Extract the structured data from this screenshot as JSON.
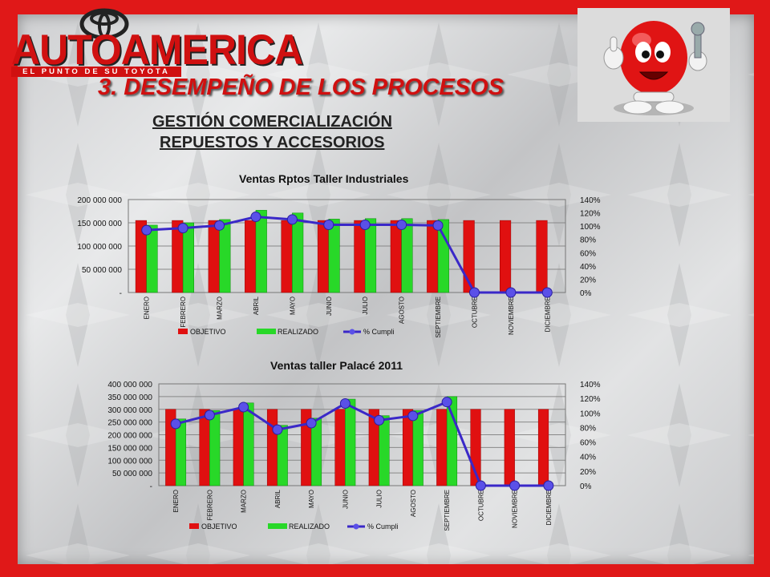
{
  "slide": {
    "logo": {
      "name": "AUTOAMERICA",
      "tagline": "EL PUNTO DE SU TOYOTA"
    },
    "title": "3. DESEMPEÑO DE LOS PROCESOS",
    "subtitle_line1": "GESTIÓN COMERCIALIZACIÓN",
    "subtitle_line2": "REPUESTOS Y ACCESORIOS",
    "mascot_icon": "red-mascot-thumbs-up-wrench-icon"
  },
  "colors": {
    "objetivo": "#e01010",
    "realizado": "#28d828",
    "cumpli": "#3a28c8",
    "frame": "#e01818"
  },
  "chart_data": [
    {
      "type": "bar",
      "title": "Ventas Rptos Taller Industriales",
      "categories": [
        "ENERO",
        "FEBRERO",
        "MARZO",
        "ABRIL",
        "MAYO",
        "JUNIO",
        "JULIO",
        "AGOSTO",
        "SEPTIEMBRE",
        "OCTUBRE",
        "NOVIEMBRE",
        "DICIEMBRE"
      ],
      "series": [
        {
          "name": "OBJETIVO",
          "kind": "bar",
          "axis": "left",
          "values": [
            155000000,
            155000000,
            155000000,
            155000000,
            155000000,
            155000000,
            155000000,
            155000000,
            155000000,
            155000000,
            155000000,
            155000000
          ]
        },
        {
          "name": "REALIZADO",
          "kind": "bar",
          "axis": "left",
          "values": [
            145000000,
            150000000,
            157000000,
            177000000,
            171000000,
            158000000,
            159000000,
            159000000,
            157000000,
            0,
            0,
            0
          ]
        },
        {
          "name": "% Cumpli",
          "kind": "line",
          "axis": "right",
          "values": [
            0.94,
            0.97,
            1.01,
            1.14,
            1.1,
            1.02,
            1.02,
            1.02,
            1.01,
            0,
            0,
            0
          ]
        }
      ],
      "ylim": [
        0,
        200000000
      ],
      "y_ticks": [
        "-",
        "50 000 000",
        "100 000 000",
        "150 000 000",
        "200 000 000"
      ],
      "y2lim": [
        0,
        1.4
      ],
      "y2_ticks": [
        "0%",
        "20%",
        "40%",
        "60%",
        "80%",
        "100%",
        "120%",
        "140%"
      ],
      "legend": "bottom",
      "grid": true
    },
    {
      "type": "bar",
      "title": "Ventas taller Palacé 2011",
      "categories": [
        "ENERO",
        "FEBRERO",
        "MARZO",
        "ABRIL",
        "MAYO",
        "JUNIO",
        "JULIO",
        "AGOSTO",
        "SEPTIEMBRE",
        "OCTUBRE",
        "NOVIEMBRE",
        "DICIEMBRE"
      ],
      "series": [
        {
          "name": "OBJETIVO",
          "kind": "bar",
          "axis": "left",
          "values": [
            300000000,
            300000000,
            300000000,
            300000000,
            300000000,
            300000000,
            300000000,
            300000000,
            300000000,
            300000000,
            300000000,
            300000000
          ]
        },
        {
          "name": "REALIZADO",
          "kind": "bar",
          "axis": "left",
          "values": [
            262000000,
            295000000,
            325000000,
            237000000,
            265000000,
            340000000,
            275000000,
            295000000,
            350000000,
            0,
            0,
            0
          ]
        },
        {
          "name": "% Cumpli",
          "kind": "line",
          "axis": "right",
          "values": [
            0.85,
            0.97,
            1.08,
            0.77,
            0.86,
            1.13,
            0.9,
            0.96,
            1.15,
            0,
            0,
            0
          ]
        }
      ],
      "ylim": [
        0,
        400000000
      ],
      "y_ticks": [
        "-",
        "50 000 000",
        "100 000 000",
        "150 000 000",
        "200 000 000",
        "250 000 000",
        "300 000 000",
        "350 000 000",
        "400 000 000"
      ],
      "y2lim": [
        0,
        1.4
      ],
      "y2_ticks": [
        "0%",
        "20%",
        "40%",
        "60%",
        "80%",
        "100%",
        "120%",
        "140%"
      ],
      "legend": "bottom",
      "grid": true
    }
  ]
}
